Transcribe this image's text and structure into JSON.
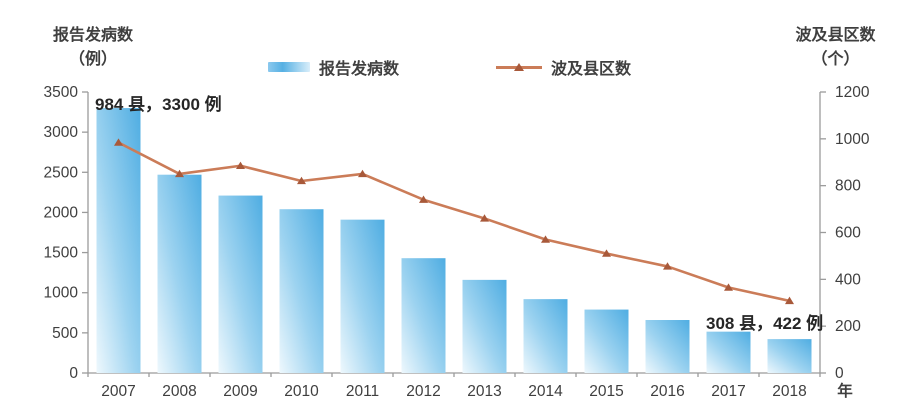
{
  "chart_data": {
    "type": "bar",
    "subtype": "combo-bar-line-dual-axis",
    "categories": [
      "2007",
      "2008",
      "2009",
      "2010",
      "2011",
      "2012",
      "2013",
      "2014",
      "2015",
      "2016",
      "2017",
      "2018"
    ],
    "series": [
      {
        "name": "报告发病数",
        "type": "bar",
        "axis": "left",
        "values": [
          3300,
          2470,
          2210,
          2040,
          1910,
          1430,
          1160,
          920,
          790,
          660,
          515,
          422
        ]
      },
      {
        "name": "波及县区数",
        "type": "line",
        "axis": "right",
        "values": [
          984,
          850,
          885,
          820,
          850,
          740,
          660,
          570,
          510,
          455,
          365,
          308
        ]
      }
    ],
    "left_axis": {
      "title": "报告发病数\n（例）",
      "min": 0,
      "max": 3500,
      "step": 500
    },
    "right_axis": {
      "title": "波及县区数\n（个）",
      "min": 0,
      "max": 1200,
      "step": 200
    },
    "x_axis_unit": "年",
    "annotations": [
      {
        "text": "984 县，3300 例",
        "target": "2007"
      },
      {
        "text": "308 县，422 例",
        "target": "2018"
      }
    ],
    "legend_position": "top-center",
    "grid": false,
    "colors": {
      "bar_gradient_light": "#eef8fd",
      "bar_gradient_mid": "#9dd3f0",
      "bar_gradient_dark": "#4fade2",
      "line": "#cb7c58",
      "marker": "#a8593a",
      "axis_line": "#9b9b9b",
      "tick_text": "#3f3f3f"
    }
  }
}
